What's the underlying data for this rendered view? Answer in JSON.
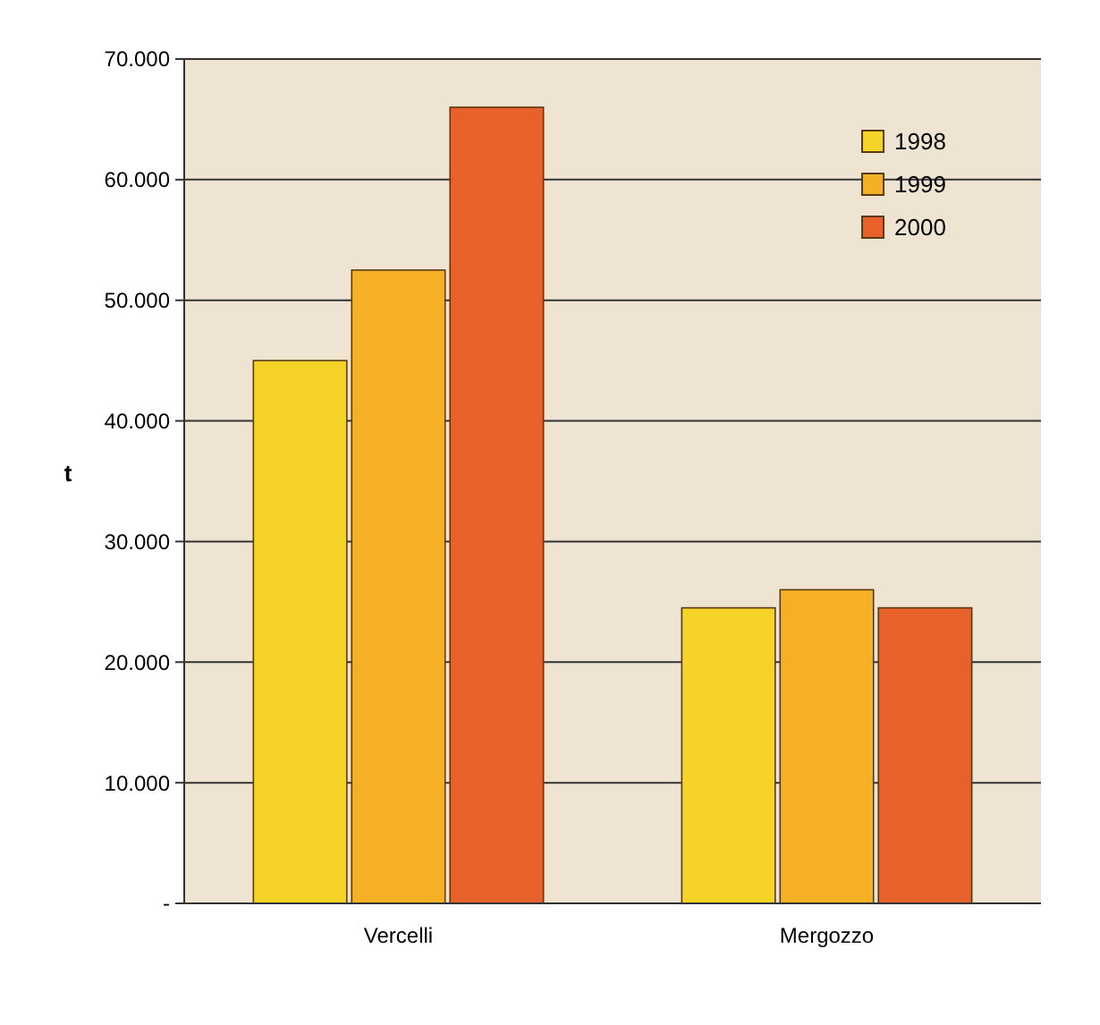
{
  "chart_data": {
    "type": "bar",
    "ylabel": "t",
    "categories": [
      "Vercelli",
      "Mergozzo"
    ],
    "series": [
      {
        "name": "1998",
        "color": "#f5d327",
        "values": [
          45000,
          24500
        ]
      },
      {
        "name": "1999",
        "color": "#f5b025",
        "values": [
          52500,
          26000
        ]
      },
      {
        "name": "2000",
        "color": "#e8602a",
        "values": [
          66000,
          24500
        ]
      }
    ],
    "ylim": [
      0,
      70000
    ],
    "yticks": [
      {
        "value": 0,
        "label": "-"
      },
      {
        "value": 10000,
        "label": "10.000"
      },
      {
        "value": 20000,
        "label": "20.000"
      },
      {
        "value": 30000,
        "label": "30.000"
      },
      {
        "value": 40000,
        "label": "40.000"
      },
      {
        "value": 50000,
        "label": "50.000"
      },
      {
        "value": 60000,
        "label": "60.000"
      },
      {
        "value": 70000,
        "label": "70.000"
      }
    ],
    "grid": "y",
    "legend": "top right"
  }
}
